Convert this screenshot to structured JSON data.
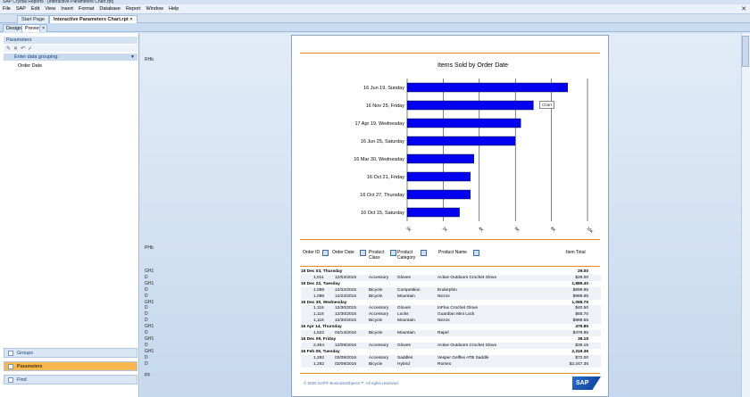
{
  "window": {
    "title": "SAP Crystal Reports - [Interactive Parameters Chart.rpt]"
  },
  "menu": [
    "File",
    "SAP",
    "Edit",
    "View",
    "Insert",
    "Format",
    "Database",
    "Report",
    "Window",
    "Help"
  ],
  "doc_tabs": [
    {
      "label": "Start Page"
    },
    {
      "label": "Interactive Parameters Chart.rpt",
      "close": "×"
    }
  ],
  "view_tabs": [
    "Design",
    "Preview"
  ],
  "view_close": "×",
  "left_panel": {
    "header": "Parameters",
    "group_header": "Enter data grouping:",
    "items": [
      "Order Date"
    ],
    "bottom_panels": [
      "Groups",
      "Parameters",
      "Find"
    ]
  },
  "section_labels": {
    "rh": "RHb",
    "ph": "PHb",
    "pf": "PF"
  },
  "report": {
    "chart_title": "Items Sold by Order Date",
    "tooltip": "Chart",
    "columns": [
      {
        "label": "Order ID"
      },
      {
        "label": "Order Date"
      },
      {
        "label": "Product Class"
      },
      {
        "label": "Product Category"
      },
      {
        "label": "Product Name"
      },
      {
        "label": "Item Total"
      }
    ],
    "rows": [
      {
        "sec": "GH1",
        "type": "group",
        "date": "15 Dec 03, Thursday",
        "total": "29.00"
      },
      {
        "sec": "D",
        "type": "detail",
        "id": "1,011",
        "odate": "12/03/2015",
        "cls": "Accessory",
        "cat": "Gloves",
        "name": "Active Outdoors Crochet Glove",
        "total": "$29.00"
      },
      {
        "sec": "GH1",
        "type": "group",
        "date": "15 Dec 22, Tuesday",
        "total": "1,889.40"
      },
      {
        "sec": "D",
        "type": "detail",
        "id": "1,088",
        "odate": "12/22/2015",
        "cls": "Bicycle",
        "cat": "Competition",
        "name": "Endorphin",
        "total": "$899.85"
      },
      {
        "sec": "D",
        "type": "detail",
        "id": "1,088",
        "odate": "12/22/2015",
        "cls": "Bicycle",
        "cat": "Mountain",
        "name": "Nicros",
        "total": "$989.55"
      },
      {
        "sec": "GH1",
        "type": "group",
        "date": "15 Dec 30, Wednesday",
        "total": "1,095.75"
      },
      {
        "sec": "D",
        "type": "detail",
        "id": "1,116",
        "odate": "12/30/2015",
        "cls": "Accessory",
        "cat": "Gloves",
        "name": "InFlux Crochet Glove",
        "total": "$40.50"
      },
      {
        "sec": "D",
        "type": "detail",
        "id": "1,116",
        "odate": "12/30/2015",
        "cls": "Accessory",
        "cat": "Locks",
        "name": "Guardian Mini Lock",
        "total": "$65.70"
      },
      {
        "sec": "D",
        "type": "detail",
        "id": "1,116",
        "odate": "12/30/2015",
        "cls": "Bicycle",
        "cat": "Mountain",
        "name": "Nicros",
        "total": "$989.55"
      },
      {
        "sec": "GH1",
        "type": "group",
        "date": "16 Apr 14, Thursday",
        "total": "479.85"
      },
      {
        "sec": "D",
        "type": "detail",
        "id": "1,522",
        "odate": "04/14/2016",
        "cls": "Bicycle",
        "cat": "Mountain",
        "name": "Rapel",
        "total": "$479.85"
      },
      {
        "sec": "GH1",
        "type": "group",
        "date": "16 Dec 09, Friday",
        "total": "39.15"
      },
      {
        "sec": "D",
        "type": "detail",
        "id": "2,464",
        "odate": "12/09/2016",
        "cls": "Accessory",
        "cat": "Gloves",
        "name": "Active Outdoors Crochet Glove",
        "total": "$39.15"
      },
      {
        "sec": "GH1",
        "type": "group",
        "date": "16 Feb 09, Tuesday",
        "total": "2,319.36"
      },
      {
        "sec": "D",
        "type": "detail",
        "id": "1,282",
        "odate": "02/09/2016",
        "cls": "Accessory",
        "cat": "Saddles",
        "name": "Vesper Gelflex ATB Saddle",
        "total": "$72.00"
      },
      {
        "sec": "D",
        "type": "detail",
        "id": "1,282",
        "odate": "02/09/2016",
        "cls": "Bicycle",
        "cat": "Hybrid",
        "name": "Romeo",
        "total": "$2,247.36"
      }
    ],
    "footer": "© 2020 SAP® BusinessObjects™. All rights reserved.",
    "logo": "SAP"
  },
  "chart_data": {
    "type": "bar",
    "orientation": "horizontal",
    "title": "Items Sold by Order Date",
    "categories": [
      "16 Jun 19, Sunday",
      "16 Nov 25, Friday",
      "17 Apr 19, Wednesday",
      "16 Jun 25, Saturday",
      "16 Mar 30, Wednesday",
      "16 Oct 21, Friday",
      "16 Oct 27, Thursday",
      "16 Oct 15, Saturday"
    ],
    "values": [
      8900,
      7000,
      6300,
      6000,
      3700,
      3500,
      3500,
      2900
    ],
    "xlim": [
      0,
      10000
    ],
    "ticks": [
      "0K",
      "2K",
      "4K",
      "6K",
      "8K",
      "10K"
    ],
    "bar_color": "#0000ee",
    "grid": "vertical"
  },
  "colors": {
    "accent": "#e98a1f",
    "bar": "#0000ee",
    "link": "#4a72b5"
  }
}
